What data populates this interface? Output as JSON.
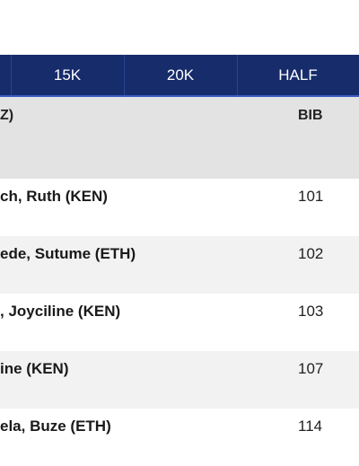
{
  "tabs": [
    "15K",
    "20K",
    "HALF"
  ],
  "header": {
    "name_fragment": "Z)",
    "bib_label": "BIB"
  },
  "rows": [
    {
      "name": "ch, Ruth (KEN)",
      "bib": "101"
    },
    {
      "name": "ede, Sutume (ETH)",
      "bib": "102"
    },
    {
      "name": ", Joyciline (KEN)",
      "bib": "103"
    },
    {
      "name": "ine (KEN)",
      "bib": "107"
    },
    {
      "name": "ela, Buze (ETH)",
      "bib": "114"
    }
  ],
  "colors": {
    "tabbar": "#172c6b",
    "accent": "#3b5cc4",
    "header_bg": "#e3e3e3",
    "alt_row": "#f2f2f2"
  }
}
